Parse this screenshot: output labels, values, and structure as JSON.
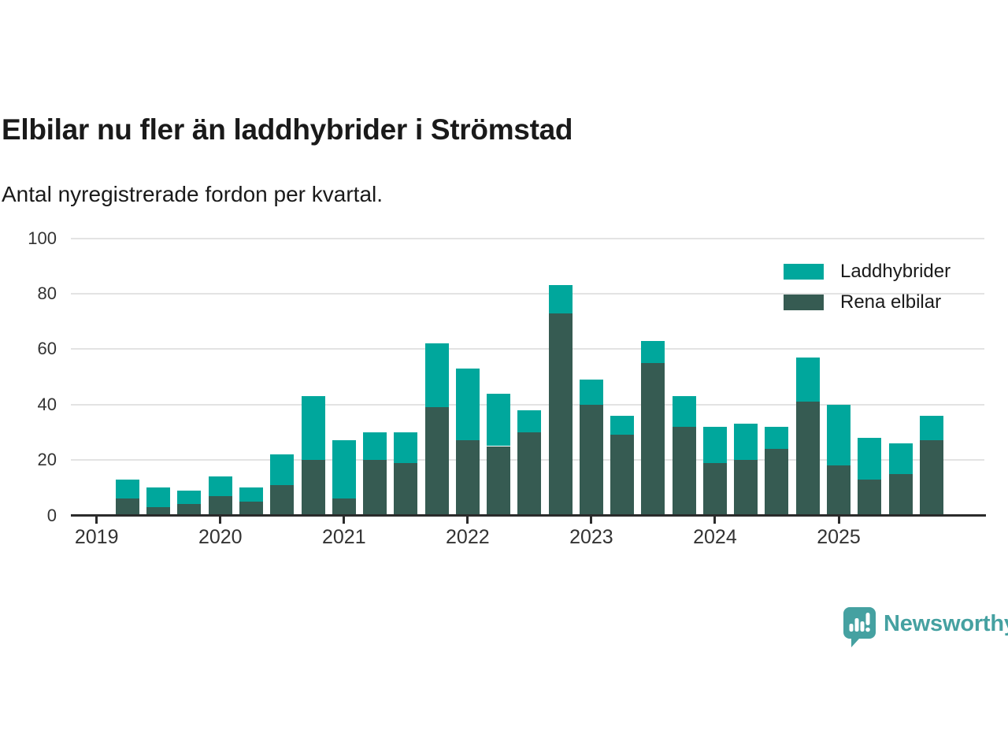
{
  "title": "Elbilar nu fler än laddhybrider i Strömstad",
  "subtitle": "Antal nyregistrerade fordon per kvartal.",
  "legend": [
    {
      "label": "Laddhybrider",
      "color": "#00a79c"
    },
    {
      "label": "Rena elbilar",
      "color": "#365b52"
    }
  ],
  "branding": {
    "logo_icon": "newsworthy-speech-bubble-chart-icon",
    "logo_text": "Newsworthy",
    "logo_color": "#45a1a1"
  },
  "colors": {
    "laddhybrider": "#00a79c",
    "rena_elbilar": "#365b52",
    "axis": "#2b2b2b",
    "gridline": "#e3e3e3",
    "text": "#1a1a1a",
    "tick_text": "#333333"
  },
  "chart_data": {
    "type": "bar",
    "stacked": true,
    "title": "Elbilar nu fler än laddhybrider i Strömstad",
    "subtitle": "Antal nyregistrerade fordon per kvartal.",
    "categories": [
      "2019 Q2",
      "2019 Q3",
      "2019 Q4",
      "2020 Q1",
      "2020 Q2",
      "2020 Q3",
      "2020 Q4",
      "2021 Q1",
      "2021 Q2",
      "2021 Q3",
      "2021 Q4",
      "2022 Q1",
      "2022 Q2",
      "2022 Q3",
      "2022 Q4",
      "2023 Q1",
      "2023 Q2",
      "2023 Q3",
      "2023 Q4",
      "2024 Q1",
      "2024 Q2",
      "2024 Q3",
      "2024 Q4",
      "2025 Q1",
      "2025 Q2",
      "2025 Q3",
      "2025 Q4"
    ],
    "first_category_quarter_offset": 1,
    "series": [
      {
        "name": "Rena elbilar",
        "color": "#365b52",
        "stack_order": "bottom",
        "values": [
          6,
          3,
          4,
          7,
          5,
          11,
          20,
          6,
          20,
          19,
          39,
          27,
          25,
          30,
          73,
          40,
          29,
          55,
          32,
          19,
          20,
          24,
          41,
          18,
          13,
          15,
          27
        ]
      },
      {
        "name": "Laddhybrider",
        "color": "#00a79c",
        "stack_order": "top",
        "values": [
          7,
          7,
          5,
          7,
          5,
          11,
          23,
          21,
          10,
          11,
          23,
          26,
          19,
          8,
          10,
          9,
          7,
          8,
          11,
          13,
          13,
          8,
          16,
          22,
          15,
          11,
          9
        ]
      }
    ],
    "totals": [
      13,
      10,
      9,
      14,
      10,
      22,
      43,
      27,
      30,
      30,
      62,
      53,
      44,
      38,
      83,
      49,
      36,
      63,
      43,
      32,
      33,
      32,
      57,
      40,
      28,
      26,
      36
    ],
    "x_tick_labels": [
      "2019",
      "2020",
      "2021",
      "2022",
      "2023",
      "2024",
      "2025"
    ],
    "y_ticks": [
      0,
      20,
      40,
      60,
      80,
      100
    ],
    "ylim": [
      0,
      100
    ],
    "xlabel": "",
    "ylabel": "",
    "grid": true,
    "legend_position": "top-right"
  }
}
